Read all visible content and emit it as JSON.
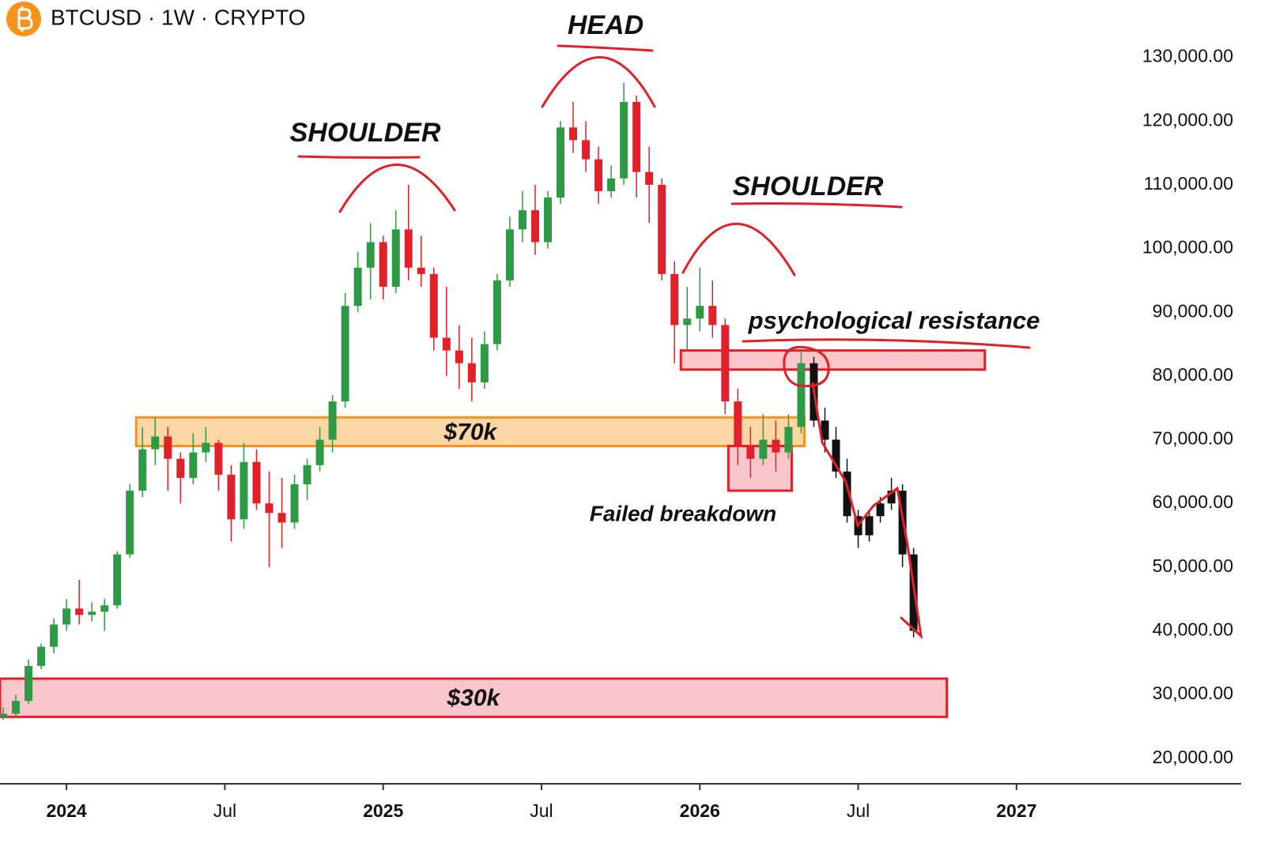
{
  "header": {
    "title": "BTCUSD · 1W · CRYPTO"
  },
  "chart_data": {
    "type": "candlestick",
    "xlim": [
      2023.79,
      2027.31
    ],
    "xticks": [
      2024,
      {
        "value": 2024.5,
        "label": "Jul"
      },
      2025,
      {
        "value": 2025.5,
        "label": "Jul"
      },
      2026,
      {
        "value": 2026.5,
        "label": "Jul"
      },
      2027
    ],
    "ylim": [
      16000,
      139000
    ],
    "yticks": [
      {
        "value": 20000,
        "label": "20,000.00"
      },
      {
        "value": 30000,
        "label": "30,000.00"
      },
      {
        "value": 40000,
        "label": "40,000.00"
      },
      {
        "value": 50000,
        "label": "50,000.00"
      },
      {
        "value": 60000,
        "label": "60,000.00"
      },
      {
        "value": 70000,
        "label": "70,000.00"
      },
      {
        "value": 80000,
        "label": "80,000.00"
      },
      {
        "value": 90000,
        "label": "90,000.00"
      },
      {
        "value": 100000,
        "label": "100,000.00"
      },
      {
        "value": 110000,
        "label": "110,000.00"
      },
      {
        "value": 120000,
        "label": "120,000.00"
      },
      {
        "value": 130000,
        "label": "130,000.00"
      }
    ],
    "candles": {
      "up_color": "#2e9a45",
      "down_color": "#e0202a",
      "x": [
        2023.8,
        2023.84,
        2023.88,
        2023.92,
        2023.96,
        2024.0,
        2024.04,
        2024.08,
        2024.12,
        2024.16,
        2024.2,
        2024.24,
        2024.28,
        2024.32,
        2024.36,
        2024.4,
        2024.44,
        2024.48,
        2024.52,
        2024.56,
        2024.6,
        2024.64,
        2024.68,
        2024.72,
        2024.76,
        2024.8,
        2024.84,
        2024.88,
        2024.92,
        2024.96,
        2025.0,
        2025.04,
        2025.08,
        2025.12,
        2025.16,
        2025.2,
        2025.24,
        2025.28,
        2025.32,
        2025.36,
        2025.4,
        2025.44,
        2025.48,
        2025.52,
        2025.56,
        2025.6,
        2025.64,
        2025.68,
        2025.72,
        2025.76,
        2025.8,
        2025.84,
        2025.88,
        2025.92,
        2025.96,
        2026.0,
        2026.04,
        2026.08,
        2026.12,
        2026.16,
        2026.2,
        2026.24,
        2026.28,
        2026.32
      ],
      "ohlc": [
        [
          26500,
          28000,
          26000,
          27000
        ],
        [
          27000,
          30000,
          26500,
          29000
        ],
        [
          29000,
          35500,
          28500,
          34500
        ],
        [
          34500,
          38000,
          34000,
          37500
        ],
        [
          37500,
          42000,
          36500,
          41000
        ],
        [
          41000,
          45000,
          40000,
          43500
        ],
        [
          43500,
          48000,
          41000,
          42500
        ],
        [
          42500,
          44500,
          41500,
          43000
        ],
        [
          43000,
          45000,
          40000,
          44000
        ],
        [
          44000,
          52500,
          43500,
          52000
        ],
        [
          52000,
          63000,
          51500,
          62000
        ],
        [
          62000,
          72000,
          61000,
          68500
        ],
        [
          68500,
          73500,
          66000,
          70500
        ],
        [
          70500,
          72000,
          62000,
          67000
        ],
        [
          67000,
          68000,
          60000,
          64000
        ],
        [
          64000,
          71000,
          63000,
          68000
        ],
        [
          68000,
          72000,
          66500,
          69500
        ],
        [
          69500,
          70000,
          62000,
          64500
        ],
        [
          64500,
          66000,
          54000,
          57500
        ],
        [
          57500,
          69500,
          56000,
          66500
        ],
        [
          66500,
          68500,
          59000,
          60000
        ],
        [
          60000,
          65000,
          50000,
          58500
        ],
        [
          58500,
          64000,
          53000,
          57000
        ],
        [
          57000,
          64500,
          56000,
          63000
        ],
        [
          63000,
          67000,
          60500,
          66000
        ],
        [
          66000,
          72000,
          65000,
          70000
        ],
        [
          70000,
          77000,
          68000,
          76000
        ],
        [
          76000,
          93000,
          75000,
          91000
        ],
        [
          91000,
          99500,
          90000,
          97000
        ],
        [
          97000,
          104000,
          92000,
          101000
        ],
        [
          101000,
          102000,
          92000,
          94000
        ],
        [
          94000,
          106000,
          93000,
          103000
        ],
        [
          103000,
          110000,
          95000,
          97000
        ],
        [
          97000,
          102000,
          94000,
          96000
        ],
        [
          96000,
          97000,
          84000,
          86000
        ],
        [
          86000,
          94000,
          80000,
          84000
        ],
        [
          84000,
          88000,
          78000,
          82000
        ],
        [
          82000,
          86000,
          76000,
          79000
        ],
        [
          79000,
          87000,
          78000,
          85000
        ],
        [
          85000,
          96000,
          84000,
          95000
        ],
        [
          95000,
          105000,
          94000,
          103000
        ],
        [
          103000,
          109000,
          101000,
          106000
        ],
        [
          106000,
          110000,
          99000,
          101000
        ],
        [
          101000,
          109000,
          100000,
          108000
        ],
        [
          108000,
          120000,
          107000,
          119000
        ],
        [
          119000,
          123000,
          115000,
          117000
        ],
        [
          117000,
          120000,
          112000,
          114000
        ],
        [
          114000,
          116000,
          107000,
          109000
        ],
        [
          109000,
          113000,
          108000,
          111000
        ],
        [
          111000,
          126000,
          110000,
          123000
        ],
        [
          123000,
          124000,
          108000,
          112000
        ],
        [
          112000,
          116000,
          104000,
          110000
        ],
        [
          110000,
          111000,
          95000,
          96000
        ],
        [
          96000,
          98000,
          82000,
          88000
        ],
        [
          88000,
          94000,
          84000,
          89000
        ],
        [
          89000,
          97000,
          87000,
          91000
        ],
        [
          91000,
          95000,
          86000,
          88000
        ],
        [
          88000,
          89000,
          74000,
          76000
        ],
        [
          76000,
          78000,
          66000,
          69000
        ],
        [
          69000,
          72000,
          64000,
          67000
        ],
        [
          67000,
          74000,
          66000,
          70000
        ],
        [
          70000,
          73000,
          65000,
          68000
        ],
        [
          68000,
          74000,
          67000,
          72000
        ],
        [
          72000,
          84000,
          71000,
          82000
        ]
      ]
    },
    "projection": {
      "color": "#111111",
      "x": [
        2026.36,
        2026.395,
        2026.43,
        2026.465,
        2026.5,
        2026.535,
        2026.57,
        2026.605,
        2026.64,
        2026.675
      ],
      "ohlc": [
        [
          82000,
          83000,
          72000,
          73000
        ],
        [
          73000,
          75000,
          68000,
          70000
        ],
        [
          70000,
          72000,
          64000,
          65000
        ],
        [
          65000,
          67000,
          57000,
          58000
        ],
        [
          58000,
          59000,
          53000,
          55000
        ],
        [
          55000,
          59000,
          54000,
          58000
        ],
        [
          58000,
          61000,
          57000,
          60000
        ],
        [
          60000,
          64000,
          59000,
          62000
        ],
        [
          62000,
          63000,
          50000,
          52000
        ],
        [
          52000,
          53000,
          39000,
          40000
        ]
      ]
    },
    "zones": [
      {
        "label": "$70k",
        "x": [
          2024.22,
          2026.33
        ],
        "y": [
          69000,
          73500
        ],
        "fill": "#fcd6a4",
        "stroke": "#f5921e"
      },
      {
        "label": "$30k",
        "x": [
          2023.79,
          2026.78
        ],
        "y": [
          26500,
          32500
        ],
        "fill": "#f9c6cc",
        "stroke": "#e01f26"
      },
      {
        "x": [
          2025.94,
          2026.9
        ],
        "y": [
          81000,
          84000
        ],
        "fill": "#f9c6cc",
        "stroke": "#e01f26"
      },
      {
        "x": [
          2026.09,
          2026.29
        ],
        "y": [
          62000,
          69000
        ],
        "fill": "#f9c6cc",
        "stroke": "#e01f26"
      }
    ],
    "annotations": [
      "SHOULDER",
      "HEAD",
      "SHOULDER",
      "psychological resistance",
      "Failed breakdown"
    ]
  }
}
